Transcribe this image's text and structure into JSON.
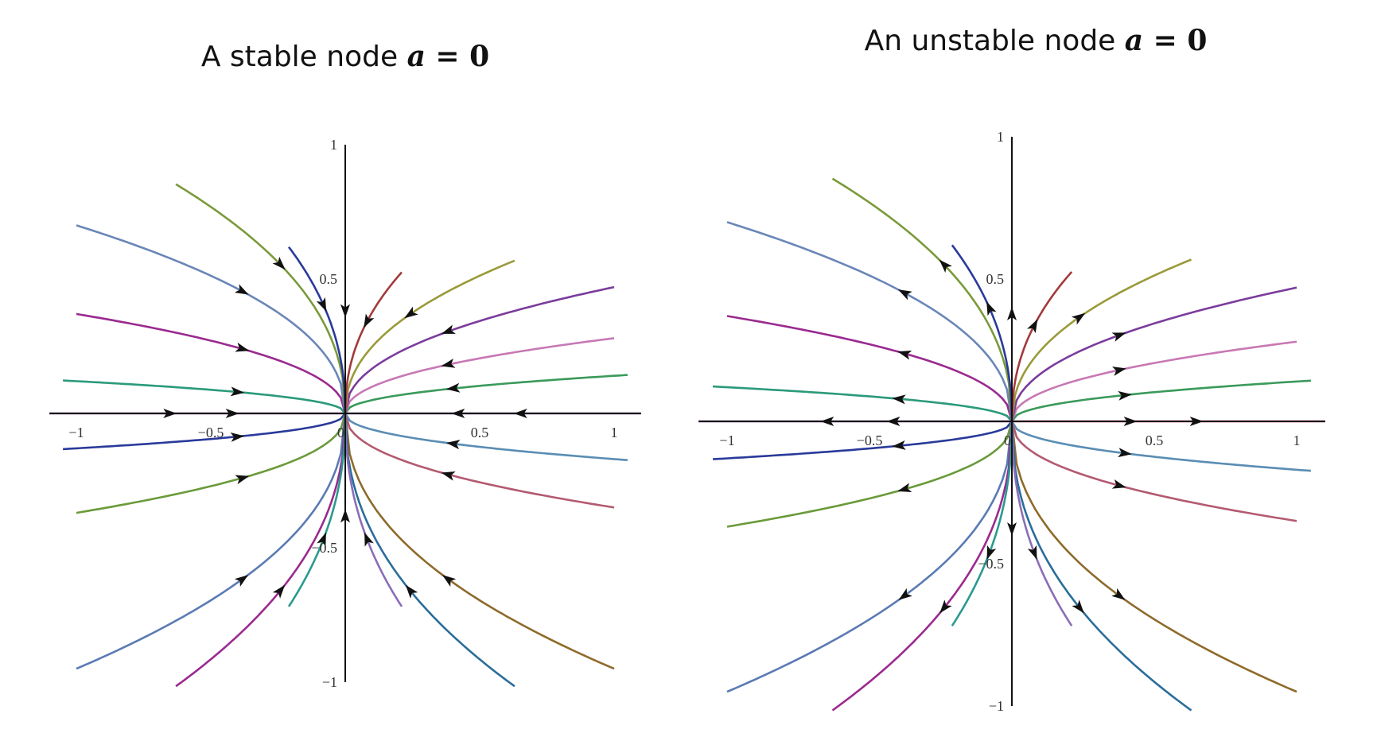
{
  "chart_data": [
    {
      "type": "line",
      "title": "A stable node",
      "title_math": {
        "var": "a",
        "eq": " = ",
        "val": "0"
      },
      "stability": "stable",
      "x_ticks": [
        {
          "value": -1,
          "label": "−1"
        },
        {
          "value": -0.5,
          "label": "−0.5"
        },
        {
          "value": 0,
          "label": "0"
        },
        {
          "value": 0.5,
          "label": "0.5"
        },
        {
          "value": 1,
          "label": "1"
        }
      ],
      "y_ticks": [
        {
          "value": 1,
          "label": "1"
        },
        {
          "value": 0.5,
          "label": "0.5"
        },
        {
          "value": -0.5,
          "label": "−0.5"
        },
        {
          "value": -1,
          "label": "−1"
        }
      ],
      "xlim": [
        -1,
        1
      ],
      "ylim": [
        -1,
        1
      ],
      "grid": false,
      "trajectory_shape": "y = k * |x|^0.45 (curves tangent to x-axis at the origin)",
      "trajectories": [
        {
          "k": 0,
          "x_end": 1.1,
          "color": "#6a3d8f"
        },
        {
          "k": 0,
          "x_end": -1.1,
          "color": "#7a3d8f"
        },
        {
          "k": 0.14,
          "x_end": 1.05,
          "color": "#3a9a5b"
        },
        {
          "k": 0.28,
          "x_end": 1.0,
          "color": "#c878b4"
        },
        {
          "k": 0.47,
          "x_end": 1.0,
          "color": "#7b3c9c"
        },
        {
          "k": 0.7,
          "x_end": 0.63,
          "color": "#9a9a3a"
        },
        {
          "k": 1.06,
          "x_end": 0.21,
          "color": "#a33a3a"
        },
        {
          "k": -0.17,
          "x_end": 1.05,
          "color": "#5a8db4"
        },
        {
          "k": -0.35,
          "x_end": 1.0,
          "color": "#b35a70"
        },
        {
          "k": -0.95,
          "x_end": 1.0,
          "color": "#8f6a2a"
        },
        {
          "k": -1.25,
          "x_end": 0.63,
          "color": "#2a6d9a"
        },
        {
          "k": -1.45,
          "x_end": 0.21,
          "color": "#8a6db8"
        },
        {
          "k": 0.12,
          "x_end": -1.05,
          "color": "#2a9a7a"
        },
        {
          "k": 0.37,
          "x_end": -1.0,
          "color": "#9a2a8f"
        },
        {
          "k": 0.7,
          "x_end": -1.0,
          "color": "#6a86b8"
        },
        {
          "k": 1.05,
          "x_end": -0.63,
          "color": "#7a9a3a"
        },
        {
          "k": 1.25,
          "x_end": -0.21,
          "color": "#2a3a9a"
        },
        {
          "k": -0.13,
          "x_end": -1.05,
          "color": "#2a3a9a"
        },
        {
          "k": -0.37,
          "x_end": -1.0,
          "color": "#6a9a3a"
        },
        {
          "k": -0.95,
          "x_end": -1.0,
          "color": "#5a7ab4"
        },
        {
          "k": -1.25,
          "x_end": -0.63,
          "color": "#9a2a8f"
        },
        {
          "k": -1.45,
          "x_end": -0.21,
          "color": "#2a9a8f"
        }
      ]
    },
    {
      "type": "line",
      "title": "An unstable node",
      "title_math": {
        "var": "a",
        "eq": " = ",
        "val": "0"
      },
      "stability": "unstable",
      "x_ticks": [
        {
          "value": -1,
          "label": "−1"
        },
        {
          "value": -0.5,
          "label": "−0.5"
        },
        {
          "value": 0,
          "label": "0"
        },
        {
          "value": 0.5,
          "label": "0.5"
        },
        {
          "value": 1,
          "label": "1"
        }
      ],
      "y_ticks": [
        {
          "value": 1,
          "label": "1"
        },
        {
          "value": 0.5,
          "label": "0.5"
        },
        {
          "value": -0.5,
          "label": "−0.5"
        },
        {
          "value": -1,
          "label": "−1"
        }
      ],
      "xlim": [
        -1,
        1
      ],
      "ylim": [
        -1,
        1
      ],
      "grid": false,
      "trajectory_shape": "y = k * |x|^0.45 (curves tangent to x-axis at the origin)",
      "trajectories": [
        {
          "k": 0,
          "x_end": 1.1,
          "color": "#b33a5a"
        },
        {
          "k": 0,
          "x_end": -1.1,
          "color": "#7a3d8f"
        },
        {
          "k": 0.14,
          "x_end": 1.05,
          "color": "#3a9a5b"
        },
        {
          "k": 0.28,
          "x_end": 1.0,
          "color": "#c878b4"
        },
        {
          "k": 0.47,
          "x_end": 1.0,
          "color": "#7b3c9c"
        },
        {
          "k": 0.7,
          "x_end": 0.63,
          "color": "#9a9a3a"
        },
        {
          "k": 1.06,
          "x_end": 0.21,
          "color": "#a33a3a"
        },
        {
          "k": -0.17,
          "x_end": 1.05,
          "color": "#5a8db4"
        },
        {
          "k": -0.35,
          "x_end": 1.0,
          "color": "#b35a70"
        },
        {
          "k": -0.95,
          "x_end": 1.0,
          "color": "#8f6a2a"
        },
        {
          "k": -1.25,
          "x_end": 0.63,
          "color": "#2a6d9a"
        },
        {
          "k": -1.45,
          "x_end": 0.21,
          "color": "#8a6db8"
        },
        {
          "k": 0.12,
          "x_end": -1.05,
          "color": "#2a9a7a"
        },
        {
          "k": 0.37,
          "x_end": -1.0,
          "color": "#9a2a8f"
        },
        {
          "k": 0.7,
          "x_end": -1.0,
          "color": "#6a86b8"
        },
        {
          "k": 1.05,
          "x_end": -0.63,
          "color": "#7a9a3a"
        },
        {
          "k": 1.25,
          "x_end": -0.21,
          "color": "#2a3a9a"
        },
        {
          "k": -0.13,
          "x_end": -1.05,
          "color": "#2a3a9a"
        },
        {
          "k": -0.37,
          "x_end": -1.0,
          "color": "#6a9a3a"
        },
        {
          "k": -0.95,
          "x_end": -1.0,
          "color": "#5a7ab4"
        },
        {
          "k": -1.25,
          "x_end": -0.63,
          "color": "#9a2a8f"
        },
        {
          "k": -1.45,
          "x_end": -0.21,
          "color": "#2a9a8f"
        }
      ]
    }
  ]
}
